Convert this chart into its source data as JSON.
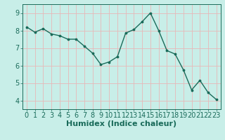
{
  "x": [
    0,
    1,
    2,
    3,
    4,
    5,
    6,
    7,
    8,
    9,
    10,
    11,
    12,
    13,
    14,
    15,
    16,
    17,
    18,
    19,
    20,
    21,
    22,
    23
  ],
  "y": [
    8.2,
    7.9,
    8.1,
    7.8,
    7.7,
    7.5,
    7.5,
    7.1,
    6.7,
    6.05,
    6.2,
    6.5,
    7.85,
    8.05,
    8.5,
    9.0,
    8.0,
    6.85,
    6.65,
    5.75,
    4.6,
    5.15,
    4.45,
    4.05
  ],
  "line_color": "#1a6b5a",
  "bg_color": "#c8eee8",
  "grid_color": "#e8b8b8",
  "xlabel": "Humidex (Indice chaleur)",
  "xlim": [
    -0.5,
    23.5
  ],
  "ylim": [
    3.5,
    9.5
  ],
  "yticks": [
    4,
    5,
    6,
    7,
    8,
    9
  ],
  "xticks": [
    0,
    1,
    2,
    3,
    4,
    5,
    6,
    7,
    8,
    9,
    10,
    11,
    12,
    13,
    14,
    15,
    16,
    17,
    18,
    19,
    20,
    21,
    22,
    23
  ],
  "markersize": 3.5,
  "linewidth": 1.0,
  "xlabel_fontsize": 8,
  "tick_fontsize": 7
}
